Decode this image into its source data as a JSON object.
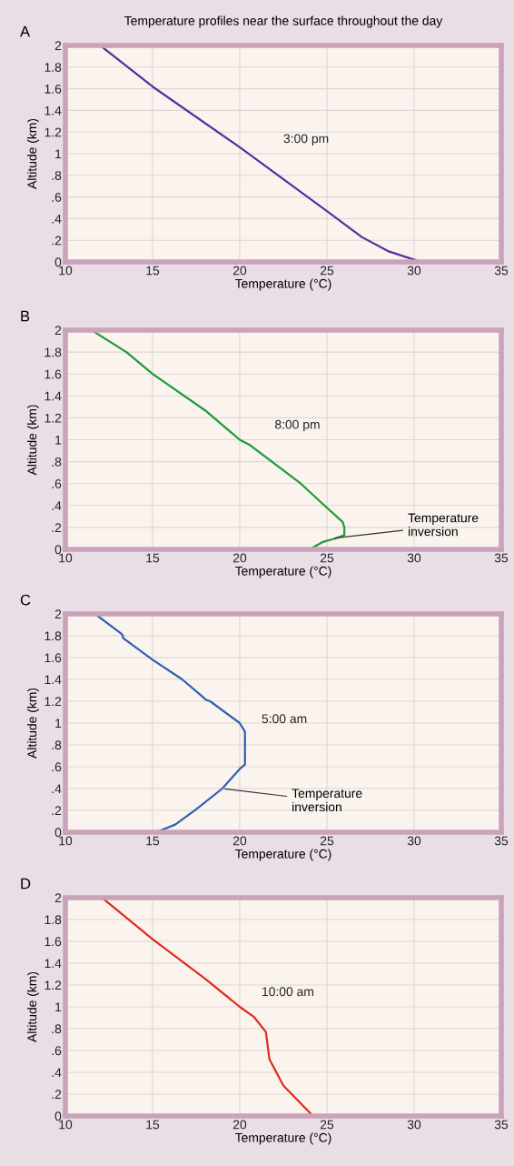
{
  "chart_data": [
    {
      "type": "line",
      "title": "Temperature profiles near the surface throughout the day",
      "subtitle": "A",
      "xlabel": "Temperature (°C)",
      "ylabel": "Altitude (km)",
      "xlim": [
        10,
        35
      ],
      "xticks": [
        10,
        15,
        20,
        25,
        30,
        35
      ],
      "ylim": [
        0,
        2
      ],
      "yticks": [
        0,
        {
          "value": 0.2,
          "label": ".2"
        },
        {
          "value": 0.4,
          "label": ".4"
        },
        {
          "value": 0.6,
          "label": ".6"
        },
        {
          "value": 0.8,
          "label": ".8"
        },
        1,
        1.2,
        1.4,
        1.6,
        1.8,
        2
      ],
      "grid": true,
      "legend": false,
      "series": [
        {
          "name": "3:00 pm",
          "color": "#5b2d9e",
          "x": [
            12.0,
            15.0,
            20.0,
            25.0,
            27.0,
            28.5,
            30.2
          ],
          "values": [
            2.0,
            1.62,
            1.06,
            0.47,
            0.23,
            0.1,
            0.01
          ]
        }
      ]
    },
    {
      "type": "line",
      "subtitle": "B",
      "xlabel": "Temperature (°C)",
      "ylabel": "Altitude (km)",
      "xlim": [
        10,
        35
      ],
      "xticks": [
        10,
        15,
        20,
        25,
        30,
        35
      ],
      "ylim": [
        0,
        2
      ],
      "yticks": [
        0,
        {
          "value": 0.2,
          "label": ".2"
        },
        {
          "value": 0.4,
          "label": ".4"
        },
        {
          "value": 0.6,
          "label": ".6"
        },
        {
          "value": 0.8,
          "label": ".8"
        },
        1,
        1.2,
        1.4,
        1.6,
        1.8,
        2
      ],
      "grid": true,
      "legend": false,
      "annotations": [
        {
          "text": "Temperature\ninversion",
          "x": 25.3,
          "y": 0.1
        }
      ],
      "series": [
        {
          "name": "8:00 pm",
          "color": "#1e9a3c",
          "x": [
            11.5,
            13.5,
            15.0,
            18.0,
            20.0,
            20.6,
            23.5,
            25.0,
            25.9,
            26.0,
            26.0,
            25.5,
            24.8,
            24.0
          ],
          "values": [
            2.0,
            1.8,
            1.6,
            1.27,
            1.0,
            0.95,
            0.6,
            0.38,
            0.25,
            0.2,
            0.13,
            0.1,
            0.07,
            0.0
          ]
        }
      ]
    },
    {
      "type": "line",
      "subtitle": "C",
      "xlabel": "Temperature (°C)",
      "ylabel": "Altitude (km)",
      "xlim": [
        10,
        35
      ],
      "xticks": [
        10,
        15,
        20,
        25,
        30,
        35
      ],
      "ylim": [
        0,
        2
      ],
      "yticks": [
        0,
        {
          "value": 0.2,
          "label": ".2"
        },
        {
          "value": 0.4,
          "label": ".4"
        },
        {
          "value": 0.6,
          "label": ".6"
        },
        {
          "value": 0.8,
          "label": ".8"
        },
        1,
        1.2,
        1.4,
        1.6,
        1.8,
        2
      ],
      "grid": true,
      "legend": false,
      "annotations": [
        {
          "text": "Temperature\ninversion",
          "x": 19.0,
          "y": 0.4
        }
      ],
      "series": [
        {
          "name": "5:00 am",
          "color": "#2e5fb0",
          "x": [
            11.7,
            13.2,
            13.3,
            13.3,
            15.0,
            16.7,
            18.1,
            18.3,
            20.0,
            20.3,
            20.3,
            20.0,
            19.0,
            17.5,
            16.3,
            15.2
          ],
          "values": [
            2.0,
            1.82,
            1.8,
            1.78,
            1.58,
            1.4,
            1.21,
            1.2,
            1.0,
            0.92,
            0.62,
            0.58,
            0.4,
            0.21,
            0.07,
            0.0
          ]
        }
      ]
    },
    {
      "type": "line",
      "subtitle": "D",
      "xlabel": "Temperature (°C)",
      "ylabel": "Altitude (km)",
      "xlim": [
        10,
        35
      ],
      "xticks": [
        10,
        15,
        20,
        25,
        30,
        35
      ],
      "ylim": [
        0,
        2
      ],
      "yticks": [
        0,
        {
          "value": 0.2,
          "label": ".2"
        },
        {
          "value": 0.4,
          "label": ".4"
        },
        {
          "value": 0.6,
          "label": ".6"
        },
        {
          "value": 0.8,
          "label": ".8"
        },
        1,
        1.2,
        1.4,
        1.6,
        1.8,
        2
      ],
      "grid": true,
      "legend": false,
      "series": [
        {
          "name": "10:00 am",
          "color": "#e02a1e",
          "x": [
            12.1,
            15.0,
            18.0,
            20.0,
            20.8,
            21.5,
            21.7,
            22.5,
            24.2
          ],
          "values": [
            2.0,
            1.62,
            1.26,
            1.0,
            0.91,
            0.77,
            0.52,
            0.28,
            0.0
          ]
        }
      ]
    }
  ]
}
